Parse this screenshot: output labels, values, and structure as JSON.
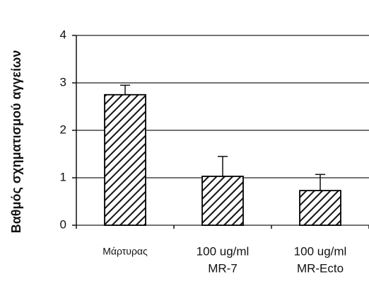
{
  "chart_data": {
    "type": "bar",
    "y_label": "Βαθμός σχηματισμού αγγείων",
    "categories": [
      [
        "Μάρτυρας"
      ],
      [
        "100 ug/ml",
        "MR-7"
      ],
      [
        "100 ug/ml",
        "MR-Ecto"
      ]
    ],
    "values": [
      2.75,
      1.03,
      0.73
    ],
    "errors": [
      0.2,
      0.42,
      0.34
    ],
    "color": "#000000",
    "ylim": [
      0,
      4
    ],
    "yticks": [
      0,
      1,
      2,
      3,
      4
    ],
    "grid": true
  }
}
